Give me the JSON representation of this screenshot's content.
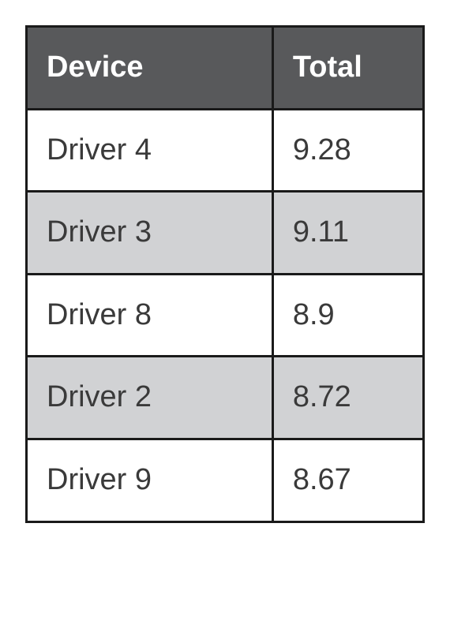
{
  "table": {
    "columns": [
      "Device",
      "Total"
    ],
    "rows": [
      {
        "device": "Driver 4",
        "total": "9.28"
      },
      {
        "device": "Driver 3",
        "total": "9.11"
      },
      {
        "device": "Driver 8",
        "total": "8.9"
      },
      {
        "device": "Driver 2",
        "total": "8.72"
      },
      {
        "device": "Driver 9",
        "total": "8.67"
      }
    ],
    "header_bg": "#58595b",
    "header_text_color": "#ffffff",
    "row_odd_bg": "#ffffff",
    "row_even_bg": "#d1d2d4",
    "border_color": "#1a1a1a",
    "cell_text_color": "#3a3a3a",
    "font_size": 38,
    "header_font_weight": 700
  }
}
